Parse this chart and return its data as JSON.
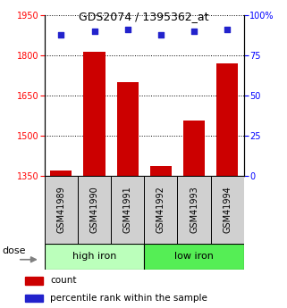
{
  "title": "GDS2074 / 1395362_at",
  "categories": [
    "GSM41989",
    "GSM41990",
    "GSM41991",
    "GSM41992",
    "GSM41993",
    "GSM41994"
  ],
  "bar_values": [
    1370,
    1815,
    1700,
    1385,
    1555,
    1770
  ],
  "percentile_values": [
    88,
    90,
    91,
    88,
    90,
    91
  ],
  "bar_color": "#cc0000",
  "dot_color": "#2222cc",
  "ylim_left": [
    1350,
    1950
  ],
  "ylim_right": [
    0,
    100
  ],
  "yticks_left": [
    1350,
    1500,
    1650,
    1800,
    1950
  ],
  "yticks_right": [
    0,
    25,
    50,
    75,
    100
  ],
  "ytick_right_labels": [
    "0",
    "25",
    "50",
    "75",
    "100%"
  ],
  "group1_label": "high iron",
  "group2_label": "low iron",
  "group1_color": "#bbffbb",
  "group2_color": "#55ee55",
  "label_box_color": "#d0d0d0",
  "legend_count_label": "count",
  "legend_percentile_label": "percentile rank within the sample",
  "dose_label": "dose",
  "title_fontsize": 9,
  "tick_fontsize": 7,
  "bar_width": 0.65
}
